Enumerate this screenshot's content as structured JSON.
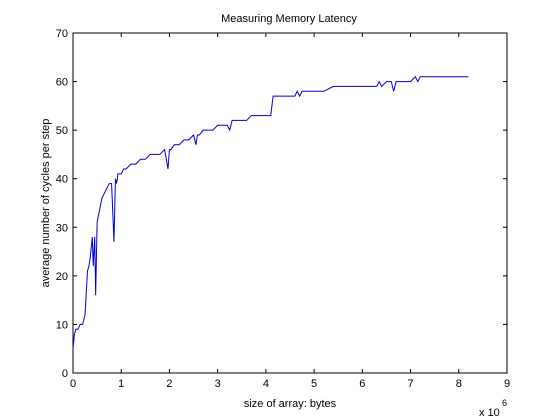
{
  "chart_data": {
    "type": "line",
    "title": "Measuring Memory Latency",
    "xlabel": "size of array: bytes",
    "ylabel": "average number of cycles per step",
    "x_multiplier_label": "x 10",
    "x_multiplier_exponent": "6",
    "xlim": [
      0,
      9
    ],
    "ylim": [
      0,
      70
    ],
    "xticks": [
      0,
      1,
      2,
      3,
      4,
      5,
      6,
      7,
      8,
      9
    ],
    "yticks": [
      0,
      10,
      20,
      30,
      40,
      50,
      60,
      70
    ],
    "grid": false,
    "line_color": "#0000cc",
    "series": [
      {
        "x": [
          0.0,
          0.03,
          0.06,
          0.1,
          0.15,
          0.2,
          0.25,
          0.3,
          0.33,
          0.36,
          0.38,
          0.4,
          0.42,
          0.45,
          0.47,
          0.5,
          0.52,
          0.54,
          0.56,
          0.6,
          0.65,
          0.7,
          0.75,
          0.8,
          0.85,
          0.88,
          0.9,
          0.92,
          0.93,
          0.95,
          1.0,
          1.05,
          1.1,
          1.2,
          1.3,
          1.4,
          1.5,
          1.6,
          1.7,
          1.8,
          1.9,
          1.97,
          2.0,
          2.03,
          2.1,
          2.2,
          2.3,
          2.4,
          2.5,
          2.55,
          2.58,
          2.62,
          2.7,
          2.8,
          2.9,
          3.0,
          3.1,
          3.2,
          3.25,
          3.3,
          3.4,
          3.5,
          3.6,
          3.7,
          3.8,
          3.9,
          4.0,
          4.1,
          4.15,
          4.2,
          4.3,
          4.5,
          4.6,
          4.65,
          4.7,
          4.75,
          4.8,
          5.0,
          5.2,
          5.4,
          5.6,
          5.8,
          6.0,
          6.2,
          6.3,
          6.35,
          6.4,
          6.5,
          6.6,
          6.65,
          6.7,
          6.8,
          6.9,
          7.0,
          7.1,
          7.15,
          7.2,
          7.4,
          7.5,
          7.6,
          7.8,
          8.0,
          8.2
        ],
        "y": [
          5,
          8,
          9,
          9,
          10,
          10,
          12,
          21,
          22,
          24,
          26,
          28,
          22,
          28,
          16,
          31,
          32,
          33,
          34,
          36,
          37,
          38,
          39,
          39,
          27,
          40,
          39,
          40,
          41,
          41,
          41,
          42,
          42,
          43,
          43,
          44,
          44,
          45,
          45,
          45,
          46,
          42,
          46,
          46,
          47,
          47,
          48,
          48,
          49,
          47,
          49,
          49,
          50,
          50,
          50,
          51,
          51,
          51,
          50,
          52,
          52,
          52,
          52,
          53,
          53,
          53,
          53,
          53,
          57,
          57,
          57,
          57,
          57,
          58,
          57,
          58,
          58,
          58,
          58,
          59,
          59,
          59,
          59,
          59,
          59,
          60,
          59,
          60,
          60,
          58,
          60,
          60,
          60,
          60,
          61,
          60,
          61,
          61,
          61,
          61,
          61,
          61,
          61
        ]
      }
    ]
  }
}
